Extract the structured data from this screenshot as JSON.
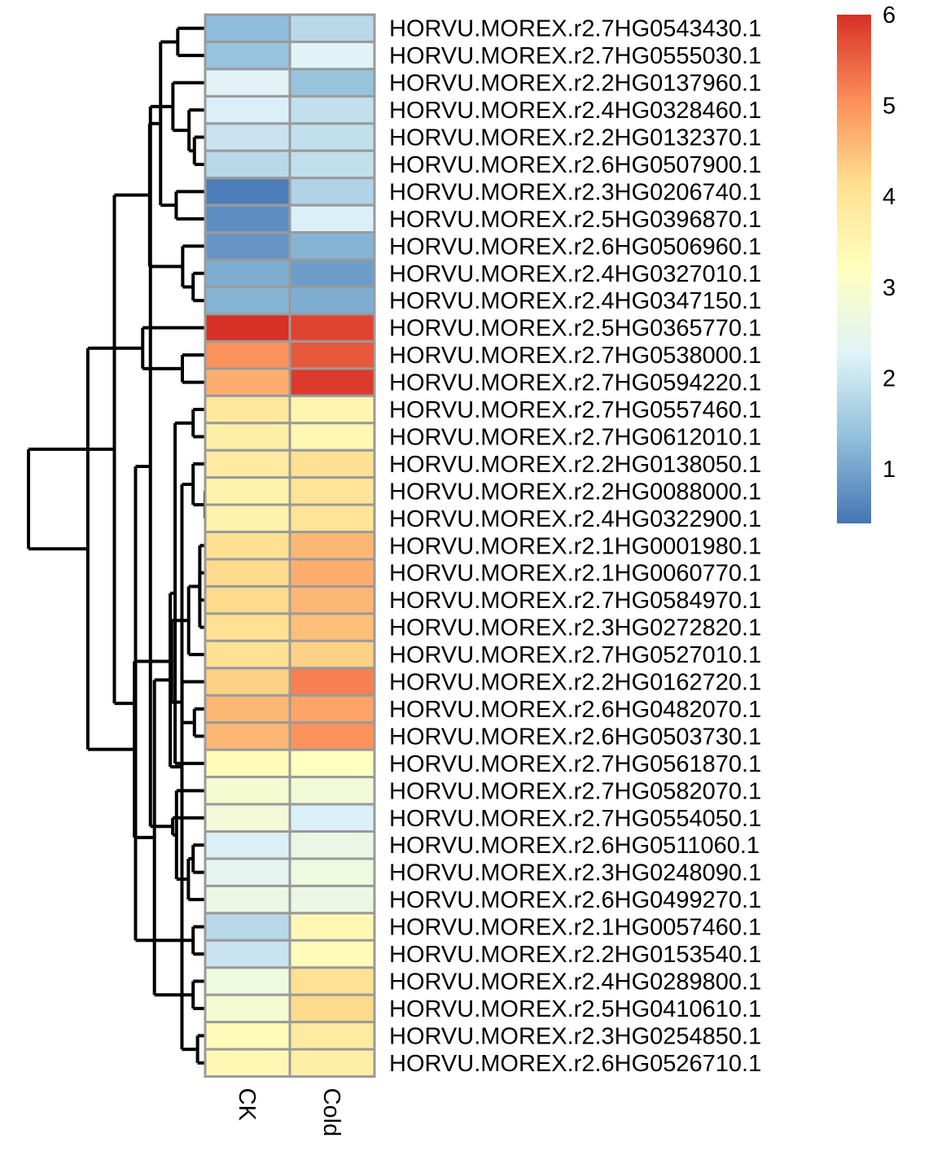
{
  "chart_data": {
    "type": "heatmap",
    "title": "",
    "columns": [
      "CK",
      "Cold"
    ],
    "rows": [
      "HORVU.MOREX.r2.7HG0543430.1",
      "HORVU.MOREX.r2.7HG0555030.1",
      "HORVU.MOREX.r2.2HG0137960.1",
      "HORVU.MOREX.r2.4HG0328460.1",
      "HORVU.MOREX.r2.2HG0132370.1",
      "HORVU.MOREX.r2.6HG0507900.1",
      "HORVU.MOREX.r2.3HG0206740.1",
      "HORVU.MOREX.r2.5HG0396870.1",
      "HORVU.MOREX.r2.6HG0506960.1",
      "HORVU.MOREX.r2.4HG0327010.1",
      "HORVU.MOREX.r2.4HG0347150.1",
      "HORVU.MOREX.r2.5HG0365770.1",
      "HORVU.MOREX.r2.7HG0538000.1",
      "HORVU.MOREX.r2.7HG0594220.1",
      "HORVU.MOREX.r2.7HG0557460.1",
      "HORVU.MOREX.r2.7HG0612010.1",
      "HORVU.MOREX.r2.2HG0138050.1",
      "HORVU.MOREX.r2.2HG0088000.1",
      "HORVU.MOREX.r2.4HG0322900.1",
      "HORVU.MOREX.r2.1HG0001980.1",
      "HORVU.MOREX.r2.1HG0060770.1",
      "HORVU.MOREX.r2.7HG0584970.1",
      "HORVU.MOREX.r2.3HG0272820.1",
      "HORVU.MOREX.r2.7HG0527010.1",
      "HORVU.MOREX.r2.2HG0162720.1",
      "HORVU.MOREX.r2.6HG0482070.1",
      "HORVU.MOREX.r2.6HG0503730.1",
      "HORVU.MOREX.r2.7HG0561870.1",
      "HORVU.MOREX.r2.7HG0582070.1",
      "HORVU.MOREX.r2.7HG0554050.1",
      "HORVU.MOREX.r2.6HG0511060.1",
      "HORVU.MOREX.r2.3HG0248090.1",
      "HORVU.MOREX.r2.6HG0499270.1",
      "HORVU.MOREX.r2.1HG0057460.1",
      "HORVU.MOREX.r2.2HG0153540.1",
      "HORVU.MOREX.r2.4HG0289800.1",
      "HORVU.MOREX.r2.5HG0410610.1",
      "HORVU.MOREX.r2.3HG0254850.1",
      "HORVU.MOREX.r2.6HG0526710.1"
    ],
    "values": [
      [
        1.3,
        1.8
      ],
      [
        1.4,
        2.3
      ],
      [
        2.3,
        1.4
      ],
      [
        2.2,
        1.9
      ],
      [
        2.0,
        1.9
      ],
      [
        1.8,
        1.9
      ],
      [
        0.5,
        1.7
      ],
      [
        0.7,
        2.2
      ],
      [
        0.8,
        1.2
      ],
      [
        1.1,
        0.9
      ],
      [
        1.2,
        1.1
      ],
      [
        6.0,
        5.8
      ],
      [
        5.0,
        5.6
      ],
      [
        4.7,
        5.9
      ],
      [
        3.9,
        3.5
      ],
      [
        3.7,
        3.4
      ],
      [
        3.8,
        4.1
      ],
      [
        3.6,
        4.0
      ],
      [
        3.6,
        4.0
      ],
      [
        4.1,
        4.6
      ],
      [
        4.2,
        4.7
      ],
      [
        4.2,
        4.6
      ],
      [
        4.1,
        4.5
      ],
      [
        4.1,
        4.3
      ],
      [
        4.3,
        5.2
      ],
      [
        4.6,
        4.8
      ],
      [
        4.6,
        5.0
      ],
      [
        3.3,
        3.2
      ],
      [
        2.9,
        2.8
      ],
      [
        2.8,
        2.2
      ],
      [
        2.2,
        2.6
      ],
      [
        2.4,
        2.7
      ],
      [
        2.6,
        2.6
      ],
      [
        1.8,
        3.4
      ],
      [
        2.0,
        3.3
      ],
      [
        2.7,
        4.1
      ],
      [
        2.9,
        4.2
      ],
      [
        3.3,
        3.8
      ],
      [
        3.4,
        3.7
      ]
    ],
    "color_scale": {
      "min": 0.4,
      "max": 6.0,
      "ticks": [
        "1",
        "2",
        "3",
        "4",
        "5",
        "6"
      ],
      "tick_values": [
        1,
        2,
        3,
        4,
        5,
        6
      ],
      "stops": [
        "#4575b4",
        "#91bfdb",
        "#e0f3f8",
        "#ffffbf",
        "#fee090",
        "#fc8d59",
        "#d73027"
      ]
    },
    "grid": true,
    "legend": "top-right"
  }
}
